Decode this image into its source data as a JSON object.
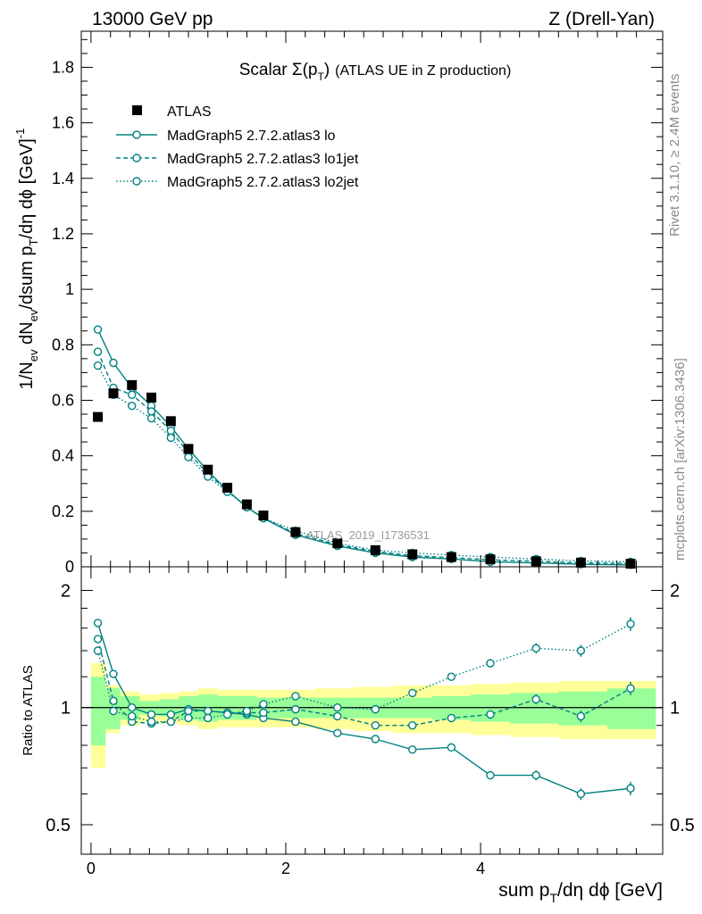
{
  "header": {
    "left_label": "13000 GeV pp",
    "right_label": "Z (Drell-Yan)",
    "title_main": "Scalar Σ(p",
    "title_sub": "T",
    "title_close": ")",
    "title_desc": "(ATLAS UE in Z production)",
    "ref_label": "ATLAS_2019_I1736531"
  },
  "side": {
    "rivet": "Rivet 3.1.10, ≥ 2.4M events",
    "mcplots": "mcplots.cern.ch [arXiv:1306.3436]"
  },
  "axis": {
    "ylabel_top": "1/N",
    "ylabel_top_full": "1/N_ev dN_ev/dsum p_T/dη dϕ [GeV]^-1",
    "ylabel_ratio": "Ratio to ATLAS",
    "xlabel": "sum p_T/dη dϕ [GeV]",
    "x_ticks": [
      "0",
      "2",
      "4"
    ],
    "y_ticks": [
      "0",
      "0.2",
      "0.4",
      "0.6",
      "0.8",
      "1",
      "1.2",
      "1.4",
      "1.6",
      "1.8"
    ],
    "ratio_ticks": [
      "0.5",
      "1",
      "2"
    ]
  },
  "legend": [
    {
      "label": "ATLAS",
      "style": "marker"
    },
    {
      "label": "MadGraph5 2.7.2.atlas3 lo",
      "style": "solid"
    },
    {
      "label": "MadGraph5 2.7.2.atlas3 lo1jet",
      "style": "dashed"
    },
    {
      "label": "MadGraph5 2.7.2.atlas3 lo2jet",
      "style": "dotted"
    }
  ],
  "colors": {
    "mc": "#008080",
    "band_inner": "#99ff99",
    "band_outer": "#ffff99"
  },
  "chart_data": {
    "type": "line",
    "title": "Scalar Σ(p_T) (ATLAS UE in Z production)",
    "xlabel": "sum p_T/dη dϕ [GeV]",
    "ylabel": "1/N_ev dN_ev/dsum p_T/dη dϕ [GeV]^-1",
    "xlim": [
      -0.1,
      5.87
    ],
    "ylim": [
      0,
      1.93
    ],
    "ratio_ylim_log": [
      0.42,
      2.3
    ],
    "bin_edges": [
      0,
      0.15,
      0.3,
      0.5,
      0.7,
      0.9,
      1.1,
      1.3,
      1.5,
      1.7,
      1.85,
      2.3,
      2.7,
      3.1,
      3.5,
      3.9,
      4.3,
      4.8,
      5.3,
      5.8
    ],
    "x": [
      0.07,
      0.23,
      0.42,
      0.62,
      0.82,
      1.0,
      1.2,
      1.4,
      1.6,
      1.77,
      2.1,
      2.53,
      2.92,
      3.3,
      3.7,
      4.1,
      4.57,
      5.03,
      5.54
    ],
    "data": {
      "name": "ATLAS",
      "values": [
        0.54,
        0.625,
        0.655,
        0.61,
        0.525,
        0.425,
        0.35,
        0.285,
        0.225,
        0.185,
        0.125,
        0.085,
        0.06,
        0.045,
        0.035,
        0.027,
        0.02,
        0.015,
        0.011
      ],
      "ratio_band_inner": [
        0.2,
        0.12,
        0.07,
        0.04,
        0.05,
        0.07,
        0.08,
        0.07,
        0.07,
        0.06,
        0.06,
        0.06,
        0.06,
        0.06,
        0.07,
        0.08,
        0.09,
        0.1,
        0.12
      ],
      "ratio_band_outer": [
        0.3,
        0.14,
        0.1,
        0.08,
        0.09,
        0.1,
        0.12,
        0.11,
        0.11,
        0.11,
        0.11,
        0.12,
        0.13,
        0.14,
        0.14,
        0.15,
        0.16,
        0.17,
        0.17
      ]
    },
    "series": [
      {
        "name": "MadGraph5 2.7.2.atlas3 lo",
        "dash": "solid",
        "values": [
          0.855,
          0.735,
          0.645,
          0.58,
          0.505,
          0.425,
          0.345,
          0.275,
          0.215,
          0.175,
          0.115,
          0.075,
          0.05,
          0.035,
          0.028,
          0.018,
          0.014,
          0.009,
          0.007
        ],
        "ratio": [
          1.65,
          1.22,
          1.0,
          0.96,
          0.96,
          0.99,
          0.98,
          0.97,
          0.96,
          0.94,
          0.92,
          0.86,
          0.83,
          0.78,
          0.79,
          0.67,
          0.67,
          0.6,
          0.62
        ],
        "ratio_err": [
          0.01,
          0.01,
          0.01,
          0.01,
          0.01,
          0.01,
          0.01,
          0.01,
          0.01,
          0.01,
          0.01,
          0.01,
          0.012,
          0.015,
          0.02,
          0.025,
          0.03,
          0.035,
          0.04
        ]
      },
      {
        "name": "MadGraph5 2.7.2.atlas3 lo1jet",
        "dash": "dashed",
        "values": [
          0.775,
          0.645,
          0.62,
          0.56,
          0.49,
          0.41,
          0.335,
          0.275,
          0.215,
          0.175,
          0.12,
          0.08,
          0.055,
          0.04,
          0.033,
          0.025,
          0.02,
          0.014,
          0.012
        ],
        "ratio": [
          1.5,
          1.04,
          0.92,
          0.91,
          0.92,
          0.98,
          0.98,
          0.97,
          0.97,
          0.97,
          0.99,
          0.95,
          0.9,
          0.9,
          0.94,
          0.96,
          1.05,
          0.95,
          1.12
        ],
        "ratio_err": [
          0.01,
          0.01,
          0.01,
          0.01,
          0.01,
          0.01,
          0.01,
          0.01,
          0.01,
          0.01,
          0.01,
          0.01,
          0.012,
          0.015,
          0.02,
          0.025,
          0.03,
          0.035,
          0.04
        ]
      },
      {
        "name": "MadGraph5 2.7.2.atlas3 lo2jet",
        "dash": "dotted",
        "values": [
          0.725,
          0.62,
          0.58,
          0.535,
          0.465,
          0.395,
          0.325,
          0.27,
          0.215,
          0.175,
          0.13,
          0.085,
          0.06,
          0.05,
          0.042,
          0.035,
          0.028,
          0.021,
          0.018
        ],
        "ratio": [
          1.4,
          0.98,
          0.95,
          0.92,
          0.92,
          0.94,
          0.94,
          0.96,
          0.98,
          1.02,
          1.07,
          1.0,
          0.99,
          1.09,
          1.2,
          1.3,
          1.42,
          1.4,
          1.64
        ],
        "ratio_err": [
          0.01,
          0.01,
          0.01,
          0.01,
          0.01,
          0.01,
          0.01,
          0.01,
          0.01,
          0.01,
          0.01,
          0.01,
          0.012,
          0.015,
          0.02,
          0.025,
          0.03,
          0.035,
          0.04
        ]
      }
    ]
  }
}
